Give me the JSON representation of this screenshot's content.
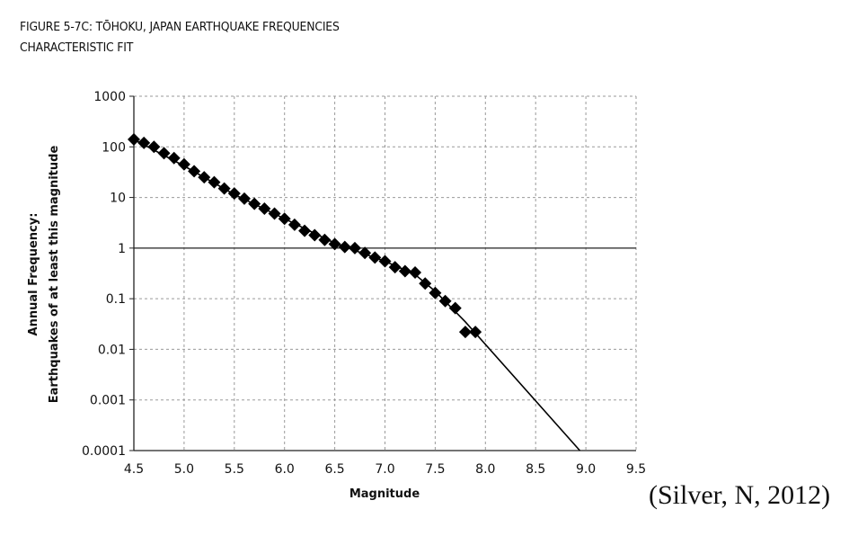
{
  "figure": {
    "title": "FIGURE 5-7C: TŌHOKU, JAPAN EARTHQUAKE FREQUENCIES",
    "subtitle": "CHARACTERISTIC FIT"
  },
  "citation": "(Silver, N, 2012)",
  "chart_data": {
    "type": "scatter",
    "xlabel": "Magnitude",
    "ylabel_line1": "Annual Frequency:",
    "ylabel_line2": "Earthquakes of at least this magnitude",
    "xlim": [
      4.5,
      9.5
    ],
    "ylim": [
      0.0001,
      1000
    ],
    "y_scale": "log",
    "x_ticks": [
      "4.5",
      "5.0",
      "5.5",
      "6.0",
      "6.5",
      "7.0",
      "7.5",
      "8.0",
      "8.5",
      "9.0",
      "9.5"
    ],
    "y_ticks": [
      "1000",
      "100",
      "10",
      "1",
      "0.1",
      "0.01",
      "0.001",
      "0.0001"
    ],
    "grid": true,
    "reference_line_y": 1,
    "series": [
      {
        "marker": "diamond",
        "color": "#000000",
        "points": [
          [
            4.5,
            140
          ],
          [
            4.6,
            120
          ],
          [
            4.7,
            100
          ],
          [
            4.8,
            75
          ],
          [
            4.9,
            60
          ],
          [
            5.0,
            45
          ],
          [
            5.1,
            33
          ],
          [
            5.2,
            25
          ],
          [
            5.3,
            20
          ],
          [
            5.4,
            15
          ],
          [
            5.5,
            12
          ],
          [
            5.6,
            9.5
          ],
          [
            5.7,
            7.5
          ],
          [
            5.8,
            6
          ],
          [
            5.9,
            4.8
          ],
          [
            6.0,
            3.8
          ],
          [
            6.1,
            2.9
          ],
          [
            6.2,
            2.2
          ],
          [
            6.3,
            1.8
          ],
          [
            6.4,
            1.45
          ],
          [
            6.5,
            1.2
          ],
          [
            6.6,
            1.05
          ],
          [
            6.7,
            1.0
          ],
          [
            6.8,
            0.8
          ],
          [
            6.9,
            0.65
          ],
          [
            7.0,
            0.55
          ],
          [
            7.1,
            0.42
          ],
          [
            7.2,
            0.35
          ],
          [
            7.3,
            0.33
          ],
          [
            7.4,
            0.2
          ],
          [
            7.5,
            0.13
          ],
          [
            7.6,
            0.09
          ],
          [
            7.7,
            0.065
          ],
          [
            7.8,
            0.022
          ],
          [
            7.9,
            0.022
          ]
        ]
      },
      {
        "type": "line",
        "color": "#000000",
        "points": [
          [
            4.5,
            140
          ],
          [
            5.0,
            42
          ],
          [
            5.5,
            11.5
          ],
          [
            6.0,
            3.8
          ],
          [
            6.5,
            1.25
          ],
          [
            7.0,
            0.55
          ],
          [
            7.3,
            0.3
          ],
          [
            7.5,
            0.14
          ],
          [
            7.8,
            0.035
          ],
          [
            8.94,
            0.0001
          ]
        ]
      }
    ]
  }
}
